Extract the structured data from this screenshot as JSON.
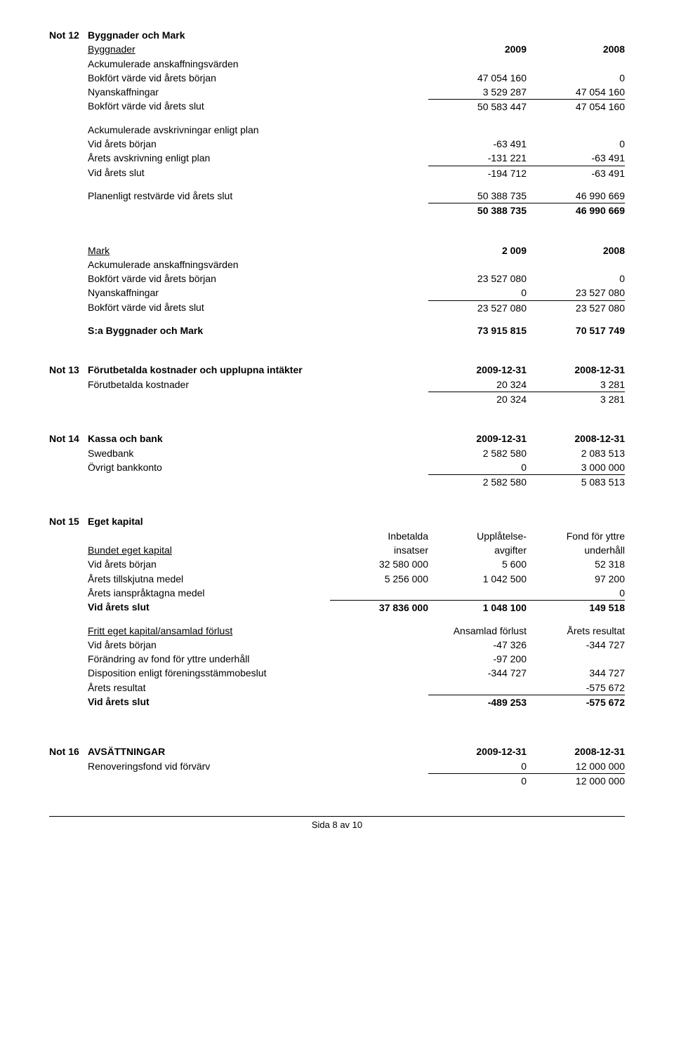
{
  "note12": {
    "id": "Not 12",
    "title": "Byggnader och Mark",
    "byggnader": {
      "heading": "Byggnader",
      "col1": "2009",
      "col2": "2008",
      "rows": [
        {
          "label": "Ackumulerade anskaffningsvärden",
          "v1": "",
          "v2": ""
        },
        {
          "label": "Bokfört värde vid årets början",
          "v1": "47 054 160",
          "v2": "0"
        },
        {
          "label": "Nyanskaffningar",
          "v1": "3 529 287",
          "v2": "47 054 160"
        },
        {
          "label": "Bokfört värde vid årets slut",
          "v1": "50 583 447",
          "v2": "47 054 160",
          "top": true
        }
      ]
    },
    "avskr": {
      "rows": [
        {
          "label": "Ackumulerade avskrivningar enligt plan",
          "v1": "",
          "v2": ""
        },
        {
          "label": "Vid årets början",
          "v1": "-63 491",
          "v2": "0"
        },
        {
          "label": "Årets avskrivning enligt plan",
          "v1": "-131 221",
          "v2": "-63 491"
        },
        {
          "label": "Vid årets slut",
          "v1": "-194 712",
          "v2": "-63 491",
          "top": true
        }
      ]
    },
    "plan": {
      "label": "Planenligt restvärde vid årets slut",
      "v1": "50 388 735",
      "v2": "46 990 669",
      "total_v1": "50 388 735",
      "total_v2": "46 990 669"
    },
    "mark": {
      "heading": "Mark",
      "col1": "2 009",
      "col2": "2008",
      "rows": [
        {
          "label": "Ackumulerade anskaffningsvärden",
          "v1": "",
          "v2": ""
        },
        {
          "label": "Bokfört värde vid årets början",
          "v1": "23 527 080",
          "v2": "0"
        },
        {
          "label": "Nyanskaffningar",
          "v1": "0",
          "v2": "23 527 080"
        },
        {
          "label": "Bokfört värde vid årets slut",
          "v1": "23 527 080",
          "v2": "23 527 080",
          "top": true
        }
      ]
    },
    "summary": {
      "label": "S:a Byggnader och Mark",
      "v1": "73 915 815",
      "v2": "70 517 749"
    }
  },
  "note13": {
    "id": "Not 13",
    "title": "Förutbetalda kostnader och upplupna intäkter",
    "col1": "2009-12-31",
    "col2": "2008-12-31",
    "rows": [
      {
        "label": "Förutbetalda kostnader",
        "v1": "20 324",
        "v2": "3 281"
      },
      {
        "label": "",
        "v1": "20 324",
        "v2": "3 281",
        "top": true
      }
    ]
  },
  "note14": {
    "id": "Not 14",
    "title": "Kassa och bank",
    "col1": "2009-12-31",
    "col2": "2008-12-31",
    "rows": [
      {
        "label": "Swedbank",
        "v1": "2 582 580",
        "v2": "2 083 513"
      },
      {
        "label": "Övrigt bankkonto",
        "v1": "0",
        "v2": "3 000 000"
      },
      {
        "label": "",
        "v1": "2 582 580",
        "v2": "5 083 513",
        "top": true
      }
    ]
  },
  "note15": {
    "id": "Not 15",
    "title": "Eget kapital",
    "head": {
      "h1a": "Inbetalda",
      "h1b": "insatser",
      "h2a": "Upplåtelse-",
      "h2b": "avgifter",
      "h3a": "Fond för yttre",
      "h3b": "underhåll",
      "bound": "Bundet eget kapital"
    },
    "bound_rows": [
      {
        "label": "Vid årets början",
        "v1": "32 580 000",
        "v2": "5 600",
        "v3": "52 318"
      },
      {
        "label": "Årets tillskjutna medel",
        "v1": "5 256 000",
        "v2": "1 042 500",
        "v3": "97 200"
      },
      {
        "label": "Årets ianspråktagna medel",
        "v1": "",
        "v2": "",
        "v3": "0"
      },
      {
        "label": "Vid årets slut",
        "v1": "37 836 000",
        "v2": "1 048 100",
        "v3": "149 518",
        "top": true,
        "bold": true
      }
    ],
    "free_head": {
      "label": "Fritt eget kapital/ansamlad förlust",
      "c1": "Ansamlad förlust",
      "c2": "Årets resultat"
    },
    "free_rows": [
      {
        "label": "Vid årets början",
        "v1": "-47 326",
        "v2": "-344 727"
      },
      {
        "label": "Förändring av fond för yttre underhåll",
        "v1": "-97 200",
        "v2": ""
      },
      {
        "label": "Disposition enligt föreningsstämmobeslut",
        "v1": "-344 727",
        "v2": "344 727"
      },
      {
        "label": "Årets resultat",
        "v1": "",
        "v2": "-575 672"
      },
      {
        "label": "Vid årets slut",
        "v1": "-489 253",
        "v2": "-575 672",
        "top": true,
        "bold": true
      }
    ]
  },
  "note16": {
    "id": "Not 16",
    "title": "AVSÄTTNINGAR",
    "col1": "2009-12-31",
    "col2": "2008-12-31",
    "rows": [
      {
        "label": "Renoveringsfond vid förvärv",
        "v1": "0",
        "v2": "12 000 000"
      },
      {
        "label": "",
        "v1": "0",
        "v2": "12 000 000",
        "top": true
      }
    ]
  },
  "footer": "Sida 8 av 10"
}
